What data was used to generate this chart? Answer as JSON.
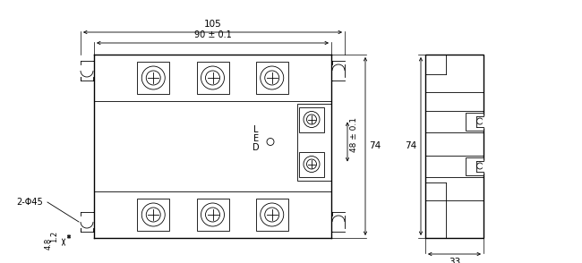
{
  "bg_color": "#ffffff",
  "line_color": "#000000",
  "fig_width": 6.5,
  "fig_height": 2.94,
  "dpi": 100,
  "dim_105": "105",
  "dim_90": "90 ± 0.1",
  "dim_74": "74",
  "dim_48": "48 ± 0.1",
  "dim_33": "33",
  "dim_2phi45": "2-Φ45",
  "dim_12": "1.2",
  "dim_48b": "4.8",
  "text_led": "LED",
  "font_size": 7.0
}
